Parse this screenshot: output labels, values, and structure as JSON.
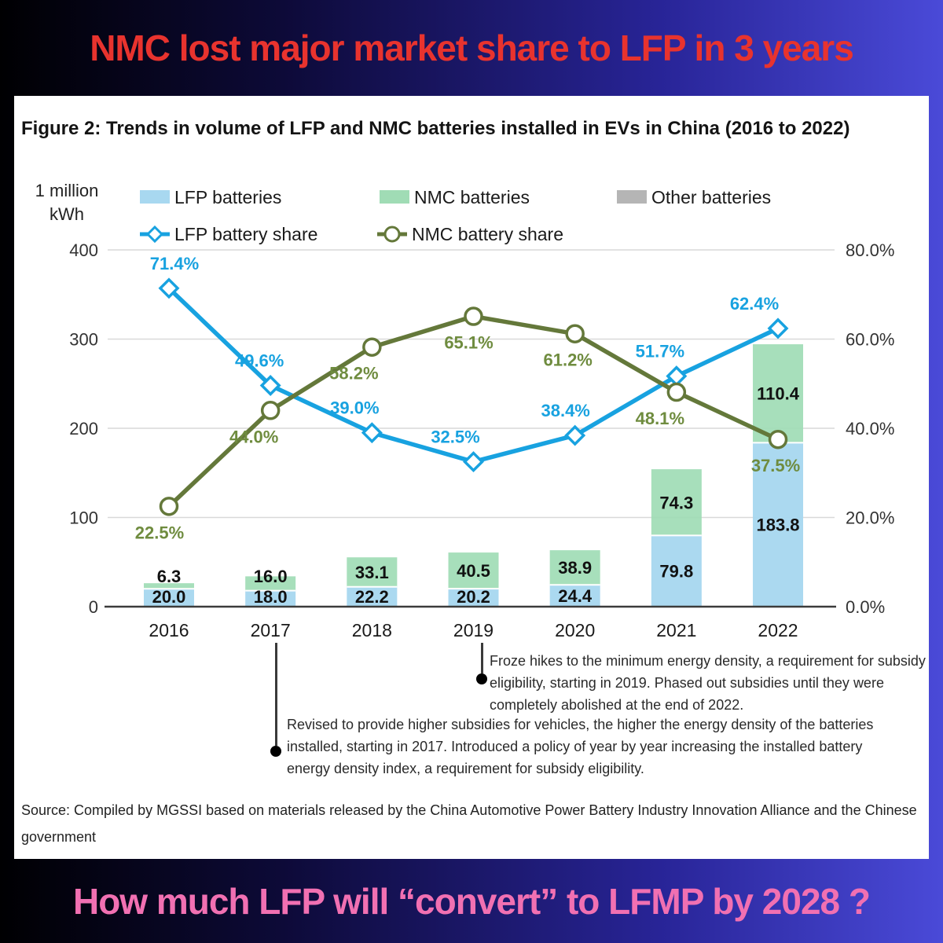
{
  "banner_top": {
    "text": "NMC lost major market share to LFP in 3 years",
    "color": "#e8332e"
  },
  "banner_bottom": {
    "text": "How much LFP will “convert” to LFMP by 2028 ?",
    "color": "#f170b2"
  },
  "figure": {
    "title": "Figure 2: Trends in volume of LFP and NMC batteries installed in EVs in China (2016 to 2022)",
    "unit_line1": "1 million",
    "unit_line2": "kWh",
    "annotations": [
      {
        "year": "2019",
        "text": "Froze hikes to the minimum energy density, a requirement for subsidy eligibility, starting in 2019. Phased out subsidies until they were completely abolished at the end of 2022."
      },
      {
        "year": "2017",
        "text": "Revised to provide higher subsidies for vehicles, the higher the energy density of the batteries installed, starting in 2017. Introduced a policy of year by year increasing the installed battery energy density index, a requirement for subsidy eligibility."
      }
    ],
    "source": "Source: Compiled by MGSSI based on materials released by the China Automotive Power Battery Industry Innovation Alliance and the Chinese government"
  },
  "chart_data": {
    "type": "bar",
    "subtype": "stacked-bar-with-lines",
    "title": "Trends in volume of LFP and NMC batteries installed in EVs in China (2016 to 2022)",
    "ylabel": "1 million kWh",
    "categories": [
      "2016",
      "2017",
      "2018",
      "2019",
      "2020",
      "2021",
      "2022"
    ],
    "series": [
      {
        "name": "LFP batteries",
        "type": "bar",
        "color": "#a8d8f0",
        "values": [
          20.0,
          18.0,
          22.2,
          20.2,
          24.4,
          79.8,
          183.8
        ]
      },
      {
        "name": "NMC batteries",
        "type": "bar",
        "color": "#a0dcb5",
        "values": [
          6.3,
          16.0,
          33.1,
          40.5,
          38.9,
          74.3,
          110.4
        ]
      },
      {
        "name": "Other batteries",
        "type": "bar",
        "color": "#b5b5b5",
        "values": []
      },
      {
        "name": "LFP battery share",
        "type": "line",
        "marker": "diamond",
        "color": "#18a2e0",
        "label_color": "#18a2e0",
        "values": [
          71.4,
          49.6,
          39.0,
          32.5,
          38.4,
          51.7,
          62.4
        ]
      },
      {
        "name": "NMC battery share",
        "type": "line",
        "marker": "circle",
        "color": "#64783a",
        "label_color": "#6f8c3f",
        "values": [
          22.5,
          44.0,
          58.2,
          65.1,
          61.2,
          48.1,
          37.5
        ]
      }
    ],
    "left_axis": {
      "ticks": [
        "0",
        "100",
        "200",
        "300",
        "400"
      ],
      "range": [
        0,
        400
      ]
    },
    "right_axis": {
      "ticks": [
        "0.0%",
        "20.0%",
        "40.0%",
        "60.0%",
        "80.0%"
      ],
      "range": [
        0,
        80
      ]
    },
    "legend_position": "top",
    "grid": true
  }
}
